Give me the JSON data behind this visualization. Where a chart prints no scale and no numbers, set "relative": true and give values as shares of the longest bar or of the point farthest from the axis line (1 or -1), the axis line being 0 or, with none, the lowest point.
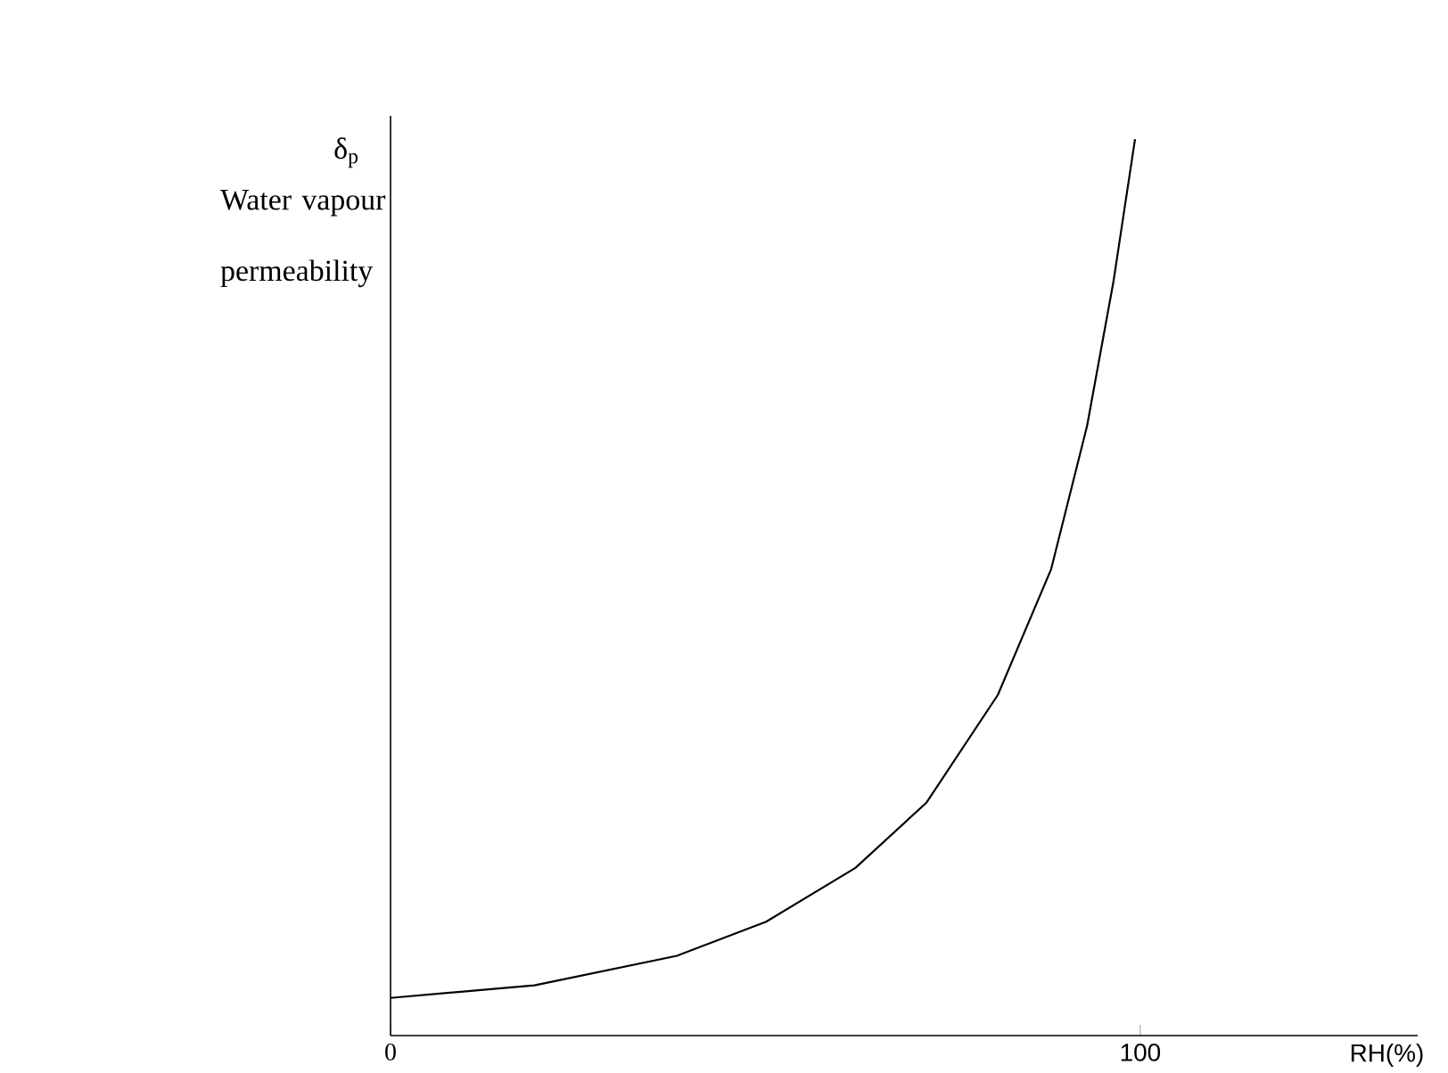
{
  "chart_data": {
    "type": "line",
    "relative": true,
    "ylabel": "δ$_{p}$",
    "xlabel": "RH(%)",
    "annotations": [
      "Water vapour permeability"
    ],
    "xlim": [
      0,
      137
    ],
    "xticks": [
      {
        "value": 0,
        "label": "0"
      },
      100
    ],
    "color": "#000000",
    "marker": "none",
    "x": [
      0,
      19.2,
      38.2,
      50.1,
      62,
      71.5,
      81,
      88.1,
      92.9,
      96.4,
      99.3
    ],
    "values": [
      0.042,
      0.056,
      0.089,
      0.127,
      0.187,
      0.26,
      0.38,
      0.52,
      0.68,
      0.84,
      1.0
    ]
  }
}
